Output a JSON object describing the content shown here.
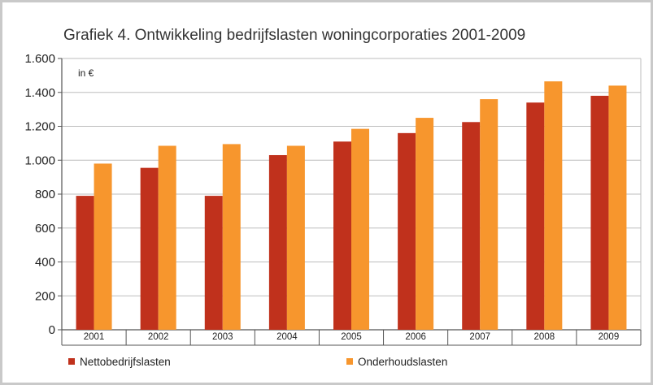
{
  "chart_data": {
    "type": "bar",
    "title": "Grafiek 4. Ontwikkeling bedrijfslasten woningcorporaties 2001-2009",
    "unit_label": "in €",
    "categories": [
      "2001",
      "2002",
      "2003",
      "2004",
      "2005",
      "2006",
      "2007",
      "2008",
      "2009"
    ],
    "series": [
      {
        "name": "Nettobedrijfslasten",
        "color": "#c0311c",
        "values": [
          790,
          955,
          790,
          1030,
          1110,
          1160,
          1225,
          1340,
          1380
        ]
      },
      {
        "name": "Onderhoudslasten",
        "color": "#f7962d",
        "values": [
          980,
          1085,
          1095,
          1085,
          1185,
          1250,
          1360,
          1465,
          1440
        ]
      }
    ],
    "ylim": [
      0,
      1600
    ],
    "yticks": [
      0,
      200,
      400,
      600,
      800,
      1000,
      1200,
      1400,
      1600
    ],
    "ytick_labels": [
      "0",
      "200",
      "400",
      "600",
      "800",
      "1.000",
      "1.200",
      "1.400",
      "1.600"
    ],
    "grid": true,
    "legend_position": "bottom"
  }
}
